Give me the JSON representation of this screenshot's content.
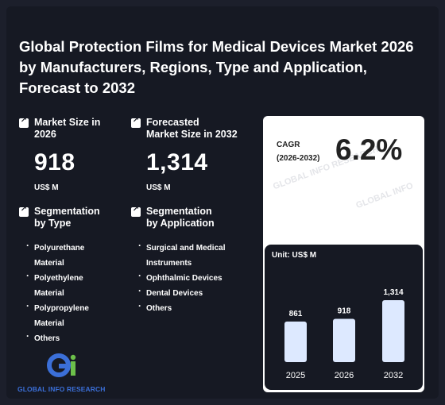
{
  "title": "Global Protection Films for Medical Devices Market 2026 by Manufacturers, Regions, Type and Application, Forecast to 2032",
  "stats": {
    "market_size": {
      "label_line1": "Market Size in",
      "label_line2": "2026",
      "value": "918",
      "unit": "US$ M",
      "icon": "arrow-up-right-icon"
    },
    "forecast": {
      "label_line1": "Forecasted",
      "label_line2": "Market Size in 2032",
      "value": "1,314",
      "unit": "US$ M",
      "icon": "arrow-up-right-icon"
    }
  },
  "segmentation": {
    "type": {
      "label_line1": "Segmentation",
      "label_line2": "by Type",
      "items": [
        "Polyurethane",
        "Material",
        "Polyethylene",
        "Material",
        "Polypropylene",
        "Material",
        "Others"
      ]
    },
    "application": {
      "label_line1": "Segmentation",
      "label_line2": "by Application",
      "items": [
        "Surgical and Medical",
        "Instruments",
        "Ophthalmic Devices",
        "Dental Devices",
        "Others"
      ]
    }
  },
  "cagr": {
    "label_line1": "CAGR",
    "label_line2": "(2026-2032)",
    "value": "6.2%"
  },
  "chart_data": {
    "type": "bar",
    "title": "",
    "unit_label": "Unit: US$ M",
    "categories": [
      "2025",
      "2026",
      "2032"
    ],
    "values": [
      861,
      918,
      1314
    ],
    "value_labels": [
      "861",
      "918",
      "1,314"
    ],
    "ylim": [
      0,
      1314
    ],
    "bar_color": "#dde9ff",
    "background_color": "#161923"
  },
  "logo": {
    "text": "GLOBAL INFO RESEARCH",
    "mark_colors": [
      "#3b6fd8",
      "#6cc04a"
    ]
  },
  "watermark": {
    "text_1": "GLOBAL INFO RESEARCH",
    "text_2": "GLOBAL INFO"
  },
  "colors": {
    "background": "#1c1f2b",
    "card": "#161923",
    "panel": "#ffffff",
    "accent_blue": "#3b6fd8",
    "accent_green": "#6cc04a"
  }
}
